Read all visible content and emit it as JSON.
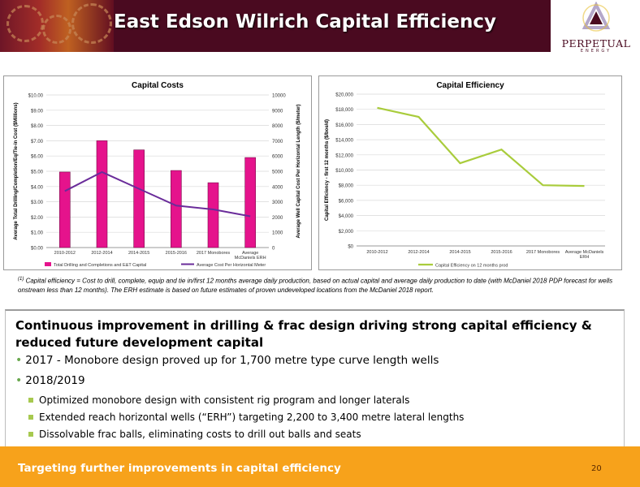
{
  "slide": {
    "title": "East Edson Wilrich Capital Efficiency",
    "page_number": "20",
    "footer": "Targeting further improvements in capital efficiency"
  },
  "logo": {
    "name": "PERPETUAL",
    "sub": "ENERGY"
  },
  "colors": {
    "banner": "#4a0a20",
    "bar": "#e5138c",
    "line_purple": "#6a2c9a",
    "line_green": "#a9cc3c",
    "footer": "#f7a21b",
    "bullet": "#a7c94f"
  },
  "charts": {
    "costs": {
      "chart_data": {
        "type": "bar",
        "title": "Capital Costs",
        "ylabel": "Average Total Drilling/Completion/Eq/Tie-in Cost ($Millions)",
        "y2label": "Average Well Capital Cost Per Horizontal Length ($/meter)",
        "categories": [
          "2010-2012",
          "2012-2014",
          "2014-2015",
          "2015-2016",
          "2017 Monobores",
          "Average McDaniels ERH"
        ],
        "y_ticks": [
          "$0.00",
          "$1.00",
          "$2.00",
          "$3.00",
          "$4.00",
          "$5.00",
          "$6.00",
          "$7.00",
          "$8.00",
          "$9.00",
          "$10.00"
        ],
        "y2_ticks": [
          "0",
          "1000",
          "2000",
          "3000",
          "4000",
          "5000",
          "6000",
          "7000",
          "8000",
          "9000",
          "10000"
        ],
        "ylim": [
          0,
          10
        ],
        "y2lim": [
          0,
          10000
        ],
        "series": [
          {
            "name": "Total Drilling and Completions and E&T Capital",
            "type": "bar",
            "values": [
              4.95,
              7.0,
              6.4,
              5.05,
              4.25,
              5.9
            ]
          },
          {
            "name": "Average Cost Per Horizontal Meter",
            "type": "line",
            "axis": "secondary",
            "values": [
              3700,
              4950,
              3850,
              2750,
              2500,
              2050
            ]
          }
        ]
      }
    },
    "efficiency": {
      "chart_data": {
        "type": "line",
        "title": "Capital Efficiency",
        "ylabel": "Capital Efficiency - first 12 months ($/boe/d)",
        "categories": [
          "2010-2012",
          "2012-2014",
          "2014-2015",
          "2015-2016",
          "2017 Monobores",
          "Average McDaniels ERH"
        ],
        "y_ticks": [
          "$0",
          "$2,000",
          "$4,000",
          "$6,000",
          "$8,000",
          "$10,000",
          "$12,000",
          "$14,000",
          "$16,000",
          "$18,000",
          "$20,000"
        ],
        "ylim": [
          0,
          20000
        ],
        "series": [
          {
            "name": "Capital Efficiency on 12 months prod",
            "values": [
              18200,
              17000,
              10900,
              12700,
              8000,
              7900
            ]
          }
        ]
      }
    }
  },
  "footnote": {
    "marker": "(1)",
    "text": "Capital efficiency = Cost to drill, complete, equip and tie in/first 12 months average daily production, based on actual capital and average daily production to date (with McDaniel 2018 PDP forecast for wells onstream less than 12 months).  The ERH estimate is based on future estimates of proven undeveloped locations from the McDaniel 2018 report."
  },
  "body": {
    "lead": "Continuous improvement in drilling & frac design driving strong capital efficiency & reduced future development capital",
    "bullets": [
      "2017 - Monobore design proved up for 1,700 metre type curve length wells",
      "2018/2019"
    ],
    "sub_bullets": [
      "Optimized monobore design with consistent rig program and longer laterals",
      "Extended reach horizontal wells (“ERH”) targeting 2,200 to 3,400 metre lateral lengths",
      "Dissolvable frac balls, eliminating costs to drill out balls and seats"
    ]
  }
}
